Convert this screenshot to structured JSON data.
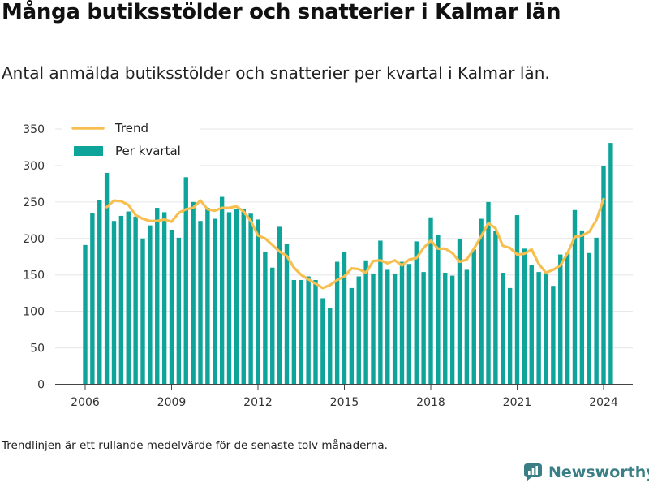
{
  "title": "Många butiksstölder och snatterier i Kalmar län",
  "subtitle": "Antal anmälda butiksstölder och snatterier per kvartal i Kalmar län.",
  "footnote": "Trendlinjen är ett rullande medelvärde för de senaste tolv månaderna.",
  "brand": {
    "name": "Newsworthy",
    "icon": "newsworthy-logo-icon"
  },
  "colors": {
    "bars": "#0fa49a",
    "trend": "#f7bf4f",
    "grid": "#e6e6e6"
  },
  "chart_data": {
    "type": "bar",
    "title": "",
    "xlabel": "",
    "ylabel": "",
    "ylim": [
      0,
      350
    ],
    "yticks": [
      0,
      50,
      100,
      150,
      200,
      250,
      300,
      350
    ],
    "xticks": [
      2006,
      2009,
      2012,
      2015,
      2018,
      2021,
      2024
    ],
    "grid": true,
    "legend": {
      "placement": "top-left",
      "entries": [
        "Trend",
        "Per kvartal"
      ]
    },
    "start": "2006 Q1",
    "series": [
      {
        "name": "Per kvartal",
        "kind": "bar",
        "values": [
          191,
          235,
          253,
          290,
          224,
          231,
          237,
          230,
          200,
          218,
          242,
          236,
          212,
          201,
          284,
          250,
          224,
          242,
          227,
          257,
          236,
          240,
          241,
          234,
          226,
          182,
          160,
          216,
          192,
          143,
          143,
          148,
          143,
          118,
          105,
          168,
          182,
          132,
          148,
          170,
          152,
          197,
          157,
          152,
          168,
          165,
          196,
          154,
          229,
          205,
          153,
          149,
          199,
          157,
          185,
          227,
          250,
          210,
          153,
          132,
          232,
          186,
          164,
          154,
          155,
          135,
          178,
          180,
          239,
          211,
          180,
          201,
          299,
          331
        ]
      },
      {
        "name": "Trend",
        "kind": "line",
        "values": [
          null,
          null,
          null,
          243,
          252,
          251,
          246,
          232,
          227,
          224,
          224,
          226,
          223,
          235,
          240,
          242,
          252,
          240,
          238,
          242,
          242,
          244,
          237,
          224,
          204,
          200,
          191,
          182,
          176,
          160,
          150,
          144,
          138,
          132,
          136,
          143,
          148,
          159,
          158,
          153,
          169,
          170,
          166,
          170,
          163,
          171,
          173,
          187,
          197,
          186,
          186,
          180,
          168,
          171,
          186,
          203,
          221,
          214,
          190,
          187,
          178,
          179,
          185,
          165,
          153,
          157,
          163,
          180,
          202,
          204,
          209,
          225,
          254,
          null
        ]
      }
    ]
  }
}
